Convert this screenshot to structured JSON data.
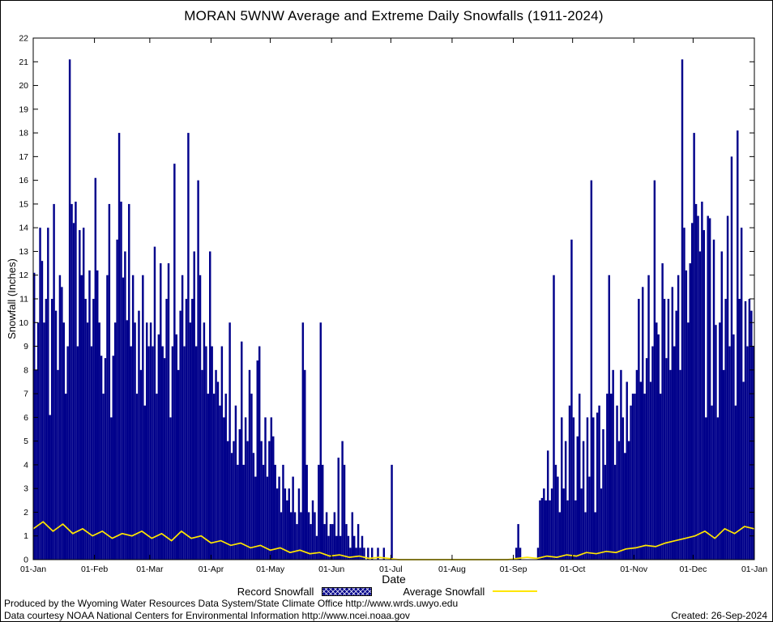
{
  "footer": {
    "line1": "Produced by the Wyoming Water Resources Data System/State Climate Office http://www.wrds.uwyo.edu",
    "line2": "Data courtesy NOAA National Centers for Environmental Information http://www.ncei.noaa.gov",
    "created": "Created: 26-Sep-2024"
  },
  "chart_data": {
    "type": "bar",
    "title": "MORAN 5WNW Average and Extreme Daily Snowfalls (1911-2024)",
    "xlabel": "Date",
    "ylabel": "Snowfall (Inches)",
    "ylim": [
      0,
      22
    ],
    "y_tick_step": 1,
    "grid": false,
    "legend_position": "bottom-center",
    "days_in_year": 365,
    "x_tick_labels": [
      "01-Jan",
      "01-Feb",
      "01-Mar",
      "01-Apr",
      "01-May",
      "01-Jun",
      "01-Jul",
      "01-Aug",
      "01-Sep",
      "01-Oct",
      "01-Nov",
      "01-Dec",
      "01-Jan"
    ],
    "x_tick_day_offsets": [
      0,
      31,
      59,
      90,
      120,
      151,
      181,
      212,
      243,
      273,
      304,
      334,
      365
    ],
    "colors": {
      "record_bar": "#00008B",
      "average_line": "#FFE600",
      "axis": "#000000"
    },
    "series": [
      {
        "name": "Record Snowfall",
        "type": "bar",
        "color": "#00008B",
        "values_daily": [
          12.1,
          8,
          10,
          14,
          12.6,
          10,
          11,
          14,
          6.1,
          11,
          15,
          10.5,
          8,
          12,
          11.5,
          10,
          7,
          9,
          21.1,
          15,
          14.2,
          15.1,
          9,
          13.9,
          12,
          14,
          11,
          10,
          12.2,
          9,
          11,
          16.1,
          12.2,
          10,
          8.6,
          7,
          8.5,
          12,
          15,
          6,
          8.6,
          10,
          13.5,
          18,
          15.1,
          11.9,
          13,
          10.1,
          15,
          9,
          12,
          10,
          7,
          10.5,
          8,
          12,
          6.5,
          10,
          9,
          10,
          9,
          13.2,
          7,
          9.5,
          12.5,
          9,
          8.5,
          11,
          12.5,
          6,
          9,
          16.7,
          9.5,
          8,
          10.5,
          12,
          9,
          11,
          18,
          10,
          11,
          13,
          9,
          16,
          12,
          8,
          10,
          9,
          7,
          13,
          9,
          7,
          8,
          7.5,
          6.5,
          9,
          6,
          7,
          5,
          10,
          4.5,
          5,
          6.5,
          4,
          5.5,
          9.2,
          4,
          6,
          5,
          8,
          7,
          4.5,
          3.5,
          8.4,
          9,
          5,
          4,
          6,
          3.5,
          5,
          6,
          5.2,
          4,
          3,
          3.5,
          2,
          4,
          3,
          2.5,
          3,
          2,
          3.5,
          2,
          1.5,
          3,
          2,
          10,
          8,
          4,
          2,
          1.5,
          2.5,
          2,
          1,
          4,
          10,
          4,
          1.5,
          2,
          1,
          1.5,
          1.5,
          2,
          1,
          4.3,
          1,
          5,
          4,
          1.5,
          1,
          0.5,
          2,
          1,
          0.5,
          1.5,
          0.5,
          1,
          0.5,
          0,
          0.5,
          0,
          0.5,
          0,
          0,
          0.5,
          0,
          0,
          0.5,
          0,
          0,
          0,
          4,
          0,
          0,
          0,
          0,
          0,
          0,
          0,
          0,
          0,
          0,
          0,
          0,
          0,
          0,
          0,
          0,
          0,
          0,
          0,
          0,
          0,
          0,
          0,
          0,
          0,
          0,
          0,
          0,
          0,
          0,
          0,
          0,
          0,
          0,
          0,
          0,
          0,
          0,
          0,
          0,
          0,
          0,
          0,
          0,
          0,
          0,
          0,
          0,
          0,
          0,
          0,
          0,
          0,
          0,
          0,
          0,
          0,
          0,
          0,
          0,
          0,
          0,
          0.5,
          1.5,
          0.5,
          0,
          0,
          0,
          0,
          0,
          0,
          0,
          0,
          0.5,
          2.5,
          2.6,
          3,
          2.5,
          4.6,
          2.5,
          3,
          12,
          4,
          3.5,
          2,
          6,
          3,
          5,
          2.5,
          6.5,
          13.5,
          6,
          2.5,
          5.2,
          7,
          3,
          5,
          2,
          6,
          3.5,
          16,
          6,
          2,
          6.2,
          6.5,
          3,
          5.5,
          4,
          7,
          12,
          7,
          8,
          4,
          6.5,
          5,
          8,
          6,
          4.5,
          7.5,
          5,
          6.5,
          7,
          7,
          8,
          11,
          7.5,
          11.5,
          7,
          8.5,
          12,
          7.5,
          9,
          16,
          10,
          9.5,
          7,
          12.5,
          11,
          8.5,
          11,
          8,
          11.5,
          9,
          10.5,
          12,
          8,
          21.1,
          14,
          12.2,
          10,
          12.5,
          14.2,
          18,
          15,
          14.5,
          13,
          15.1,
          13.9,
          6,
          14.5,
          14.4,
          6.5,
          13.5,
          9.9,
          6,
          10,
          13,
          8,
          11,
          14.5,
          9,
          17,
          9.5,
          6.5,
          18.1,
          11,
          14,
          7.5,
          10.9,
          9,
          11,
          10.5,
          9
        ]
      },
      {
        "name": "Average Snowfall",
        "type": "line",
        "color": "#FFE600",
        "sample_step_days": 5,
        "values": [
          1.3,
          1.6,
          1.2,
          1.5,
          1.1,
          1.3,
          1.0,
          1.2,
          0.9,
          1.1,
          1.0,
          1.2,
          0.9,
          1.1,
          0.8,
          1.2,
          0.9,
          1.0,
          0.7,
          0.8,
          0.6,
          0.7,
          0.5,
          0.6,
          0.4,
          0.5,
          0.3,
          0.4,
          0.25,
          0.3,
          0.15,
          0.2,
          0.1,
          0.15,
          0.05,
          0.1,
          0.05,
          0,
          0,
          0,
          0,
          0,
          0,
          0,
          0,
          0,
          0,
          0,
          0,
          0.05,
          0.1,
          0.05,
          0.15,
          0.1,
          0.2,
          0.15,
          0.3,
          0.25,
          0.35,
          0.3,
          0.45,
          0.5,
          0.6,
          0.55,
          0.7,
          0.8,
          0.9,
          1.0,
          1.2,
          0.9,
          1.3,
          1.1,
          1.4,
          1.3
        ]
      }
    ]
  }
}
